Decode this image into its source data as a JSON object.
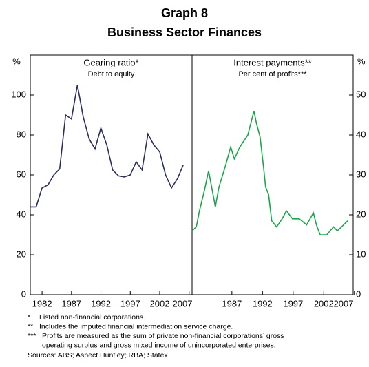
{
  "title": "Graph 8",
  "subtitle": "Business Sector Finances",
  "chart_data": [
    {
      "type": "line",
      "title": "Gearing ratio*",
      "subtitle": "Debt to equity",
      "ylabel": "%",
      "x": [
        1980,
        1981,
        1982,
        1983,
        1984,
        1985,
        1986,
        1987,
        1988,
        1989,
        1990,
        1991,
        1992,
        1993,
        1994,
        1995,
        1996,
        1997,
        1998,
        1999,
        2000,
        2001,
        2002,
        2003,
        2004,
        2005,
        2006
      ],
      "values": [
        44,
        44,
        53.5,
        55,
        60,
        63,
        90,
        88,
        105,
        89,
        78,
        73,
        83.5,
        75,
        62.5,
        59.5,
        59,
        60,
        66.5,
        62.5,
        80.5,
        75,
        71.5,
        60,
        53.5,
        58,
        65
      ],
      "color": "#2b2d5e",
      "xlim": [
        1980,
        2007.5
      ],
      "xticks": [
        1982,
        1987,
        1992,
        1997,
        2002,
        2007
      ],
      "ylim": [
        0,
        120
      ],
      "yticks": [
        0,
        20,
        40,
        60,
        80,
        100
      ]
    },
    {
      "type": "line",
      "title": "Interest payments**",
      "subtitle": "Per cent of profits***",
      "ylabel": "%",
      "x": [
        1980.5,
        1981.2,
        1981.7,
        1982.5,
        1983.2,
        1984.3,
        1984.9,
        1986.0,
        1986.8,
        1987.4,
        1988.3,
        1989.6,
        1990.6,
        1991.0,
        1991.6,
        1992.2,
        1992.5,
        1993.0,
        1993.5,
        1994.3,
        1995.2,
        1995.9,
        1996.9,
        1998.0,
        1999.2,
        2000.3,
        2000.8,
        2001.4,
        2002.5,
        2003.6,
        2004.2,
        2005.1,
        2005.9
      ],
      "values": [
        16,
        17,
        21,
        26,
        31,
        22,
        27,
        32.5,
        37,
        34,
        37,
        40,
        46,
        43,
        39.5,
        31.5,
        27,
        25,
        18.5,
        17,
        19,
        21,
        19,
        19,
        17.5,
        20.5,
        17.5,
        15,
        15,
        17,
        16,
        17.3,
        18.5
      ],
      "color": "#1aa64a",
      "xlim": [
        1980.5,
        2006.8
      ],
      "xticks": [
        1987,
        1992,
        1997,
        2002,
        2007
      ],
      "ylim": [
        0,
        60
      ],
      "yticks": [
        0,
        10,
        20,
        30,
        40,
        50
      ]
    }
  ],
  "notes": [
    {
      "marker": "*",
      "lines": [
        "Listed non-financial corporations."
      ]
    },
    {
      "marker": "**",
      "lines": [
        "Includes the imputed financial intermediation service charge."
      ]
    },
    {
      "marker": "***",
      "lines": [
        "Profits are measured as the sum of private non-financial corporations’ gross",
        "operating surplus and gross mixed income of unincorporated enterprises."
      ]
    }
  ],
  "sources": "Sources: ABS; Aspect Huntley; RBA; Statex"
}
